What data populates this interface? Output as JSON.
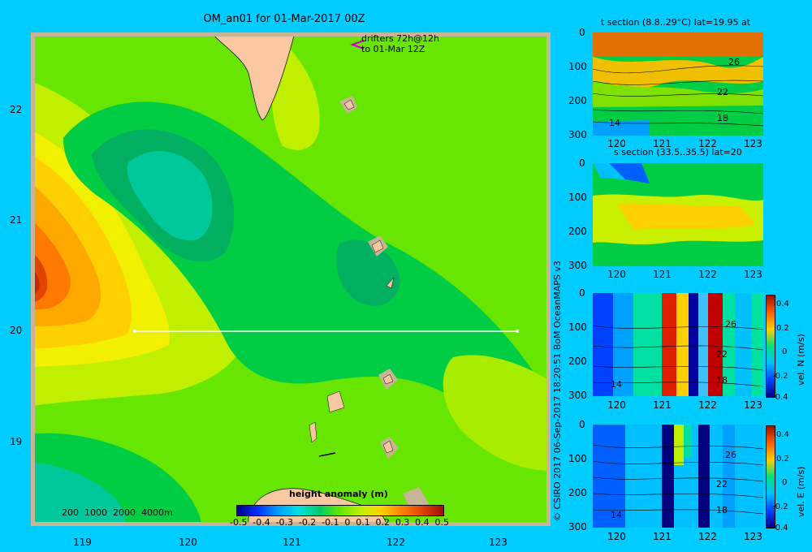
{
  "title": "OM_an01 for 01-Mar-2017 00Z",
  "drifters": {
    "line1": "drifters 72h@12h",
    "line2": "to 01-Mar 12Z"
  },
  "map": {
    "lat_ticks": [
      "22",
      "21",
      "20",
      "19"
    ],
    "lon_ticks": [
      "119",
      "120",
      "121",
      "122",
      "123"
    ],
    "depth_legend": "200  1000  2000  4000m",
    "colorbar_title": "height anomaly (m)",
    "colorbar_ticks": [
      "-0.5",
      "-0.4",
      "-0.3",
      "-0.2",
      "-0.1",
      "0",
      "0.1",
      "0.2",
      "0.3",
      "0.4",
      "0.5"
    ]
  },
  "credit": "© CSIRO 2017   06-Sep-2017 18:20:51 BoM OceanMAPS v3",
  "sections": [
    {
      "title": "t section (8.8..29°C) lat=19.95 at",
      "depth_ticks": [
        "0",
        "100",
        "200",
        "300"
      ],
      "lon_ticks": [
        "120",
        "121",
        "122",
        "123"
      ],
      "contour_labels": [
        "26",
        "22",
        "18",
        "14"
      ]
    },
    {
      "title": "s section (33.5..35.5) lat=20",
      "depth_ticks": [
        "0",
        "100",
        "200",
        "300"
      ],
      "lon_ticks": [
        "120",
        "121",
        "122",
        "123"
      ]
    },
    {
      "title": "",
      "depth_ticks": [
        "0",
        "100",
        "200",
        "300"
      ],
      "lon_ticks": [
        "120",
        "121",
        "122",
        "123"
      ],
      "contour_labels": [
        "26",
        "22",
        "18",
        "14"
      ],
      "colorbar_label": "vel. N (m/s)",
      "colorbar_ticks": [
        "0.4",
        "0.2",
        "0",
        "-0.2",
        "-0.4"
      ]
    },
    {
      "title": "",
      "depth_ticks": [
        "0",
        "100",
        "200",
        "300"
      ],
      "lon_ticks": [
        "120",
        "121",
        "122",
        "123"
      ],
      "contour_labels": [
        "26",
        "22",
        "18",
        "14"
      ],
      "colorbar_label": "vel. E (m/s)",
      "colorbar_ticks": [
        "0.4",
        "0.2",
        "0",
        "-0.2",
        "-0.4"
      ]
    }
  ],
  "chart_data": [
    {
      "type": "heatmap",
      "title": "OM_an01 for 01-Mar-2017 00Z",
      "variable": "height anomaly (m)",
      "xlim": [
        118.5,
        123.5
      ],
      "ylim": [
        18.3,
        22.7
      ],
      "color_range": [
        -0.5,
        0.5
      ],
      "features": {
        "anomaly_max": {
          "lon": 118.55,
          "lat": 20.45,
          "value": 0.45
        },
        "anomaly_min": {
          "lon": 119.5,
          "lat": 21.4,
          "value": -0.1
        },
        "section_line": {
          "lat": 20.0,
          "lon_start": 119.5,
          "lon_end": 123.2
        }
      }
    },
    {
      "type": "heatmap",
      "title": "t section (8.8..29°C) lat=19.95 at",
      "variable": "temperature (°C)",
      "xlim": [
        119.5,
        123.2
      ],
      "ylim": [
        300,
        0
      ],
      "color_range": [
        8.8,
        29
      ],
      "contours": [
        26,
        22,
        18,
        14
      ]
    },
    {
      "type": "heatmap",
      "title": "s section (33.5..35.5) lat=20",
      "variable": "salinity",
      "xlim": [
        119.5,
        123.2
      ],
      "ylim": [
        300,
        0
      ],
      "color_range": [
        33.5,
        35.5
      ]
    },
    {
      "type": "heatmap",
      "variable": "vel. N (m/s)",
      "xlim": [
        119.5,
        123.2
      ],
      "ylim": [
        300,
        0
      ],
      "color_range": [
        -0.4,
        0.4
      ],
      "contours": [
        26,
        22,
        18,
        14
      ]
    },
    {
      "type": "heatmap",
      "variable": "vel. E (m/s)",
      "xlim": [
        119.5,
        123.2
      ],
      "ylim": [
        300,
        0
      ],
      "color_range": [
        -0.4,
        0.4
      ],
      "contours": [
        26,
        22,
        18,
        14
      ]
    }
  ],
  "colors": {
    "background": "#00ccff",
    "land": "#f8c8a0",
    "shelf": "#c8b496",
    "section_line": "#ffffff",
    "drifter": "#cc00cc"
  }
}
